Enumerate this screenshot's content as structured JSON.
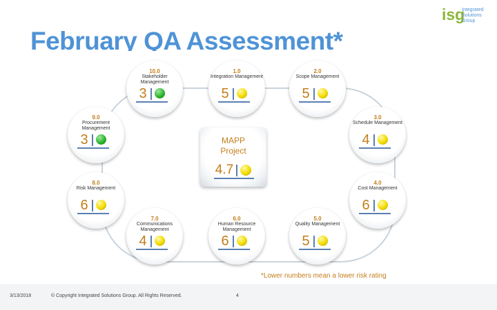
{
  "title": "February QA Assessment*",
  "logo": {
    "mark": "isg",
    "text": "Integrated Solutions Group"
  },
  "center": {
    "line1": "MAPP",
    "line2": "Project",
    "score": "4.7",
    "status": "yellow"
  },
  "nodes": [
    {
      "id": "10.0",
      "name": "Stakeholder Management",
      "score": "3",
      "status": "green"
    },
    {
      "id": "1.0",
      "name": "Integration Management",
      "score": "5",
      "status": "yellow"
    },
    {
      "id": "2.0",
      "name": "Scope Management",
      "score": "5",
      "status": "yellow"
    },
    {
      "id": "9.0",
      "name": "Procurement Management",
      "score": "3",
      "status": "green"
    },
    {
      "id": "3.0",
      "name": "Schedule Management",
      "score": "4",
      "status": "yellow"
    },
    {
      "id": "8.0",
      "name": "Risk Management",
      "score": "6",
      "status": "yellow"
    },
    {
      "id": "4.0",
      "name": "Cost Management",
      "score": "6",
      "status": "yellow"
    },
    {
      "id": "7.0",
      "name": "Communications Management",
      "score": "4",
      "status": "yellow"
    },
    {
      "id": "6.0",
      "name": "Human Resource Management",
      "score": "6",
      "status": "yellow"
    },
    {
      "id": "5.0",
      "name": "Quality Management",
      "score": "5",
      "status": "yellow"
    }
  ],
  "footnote": "*Lower numbers mean a lower risk rating",
  "footer": {
    "date": "3/13/2018",
    "copyright": "© Copyright Integrated Solutions Group. All Rights Reserved.",
    "page": "4"
  }
}
